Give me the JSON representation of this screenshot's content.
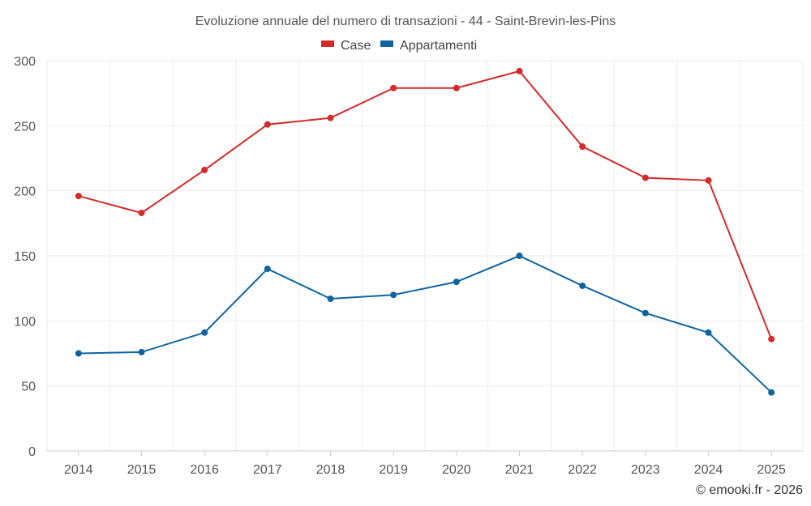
{
  "chart_data": {
    "type": "line",
    "title": "Evoluzione annuale del numero di transazioni - 44 - Saint-Brevin-les-Pins",
    "categories": [
      "2014",
      "2015",
      "2016",
      "2017",
      "2018",
      "2019",
      "2020",
      "2021",
      "2022",
      "2023",
      "2024",
      "2025"
    ],
    "series": [
      {
        "name": "Case",
        "color": "#d32a2a",
        "values": [
          196,
          183,
          216,
          251,
          256,
          279,
          279,
          292,
          234,
          210,
          208,
          86
        ]
      },
      {
        "name": "Appartamenti",
        "color": "#0f64a0",
        "values": [
          75,
          76,
          91,
          140,
          117,
          120,
          130,
          150,
          127,
          106,
          91,
          45
        ]
      }
    ],
    "ylim": [
      0,
      300
    ],
    "yticks": [
      "0",
      "50",
      "100",
      "150",
      "200",
      "250",
      "300"
    ],
    "grid": true,
    "legend": "top-center",
    "xlabel": "",
    "ylabel": ""
  },
  "credit": "© emooki.fr - 2026"
}
